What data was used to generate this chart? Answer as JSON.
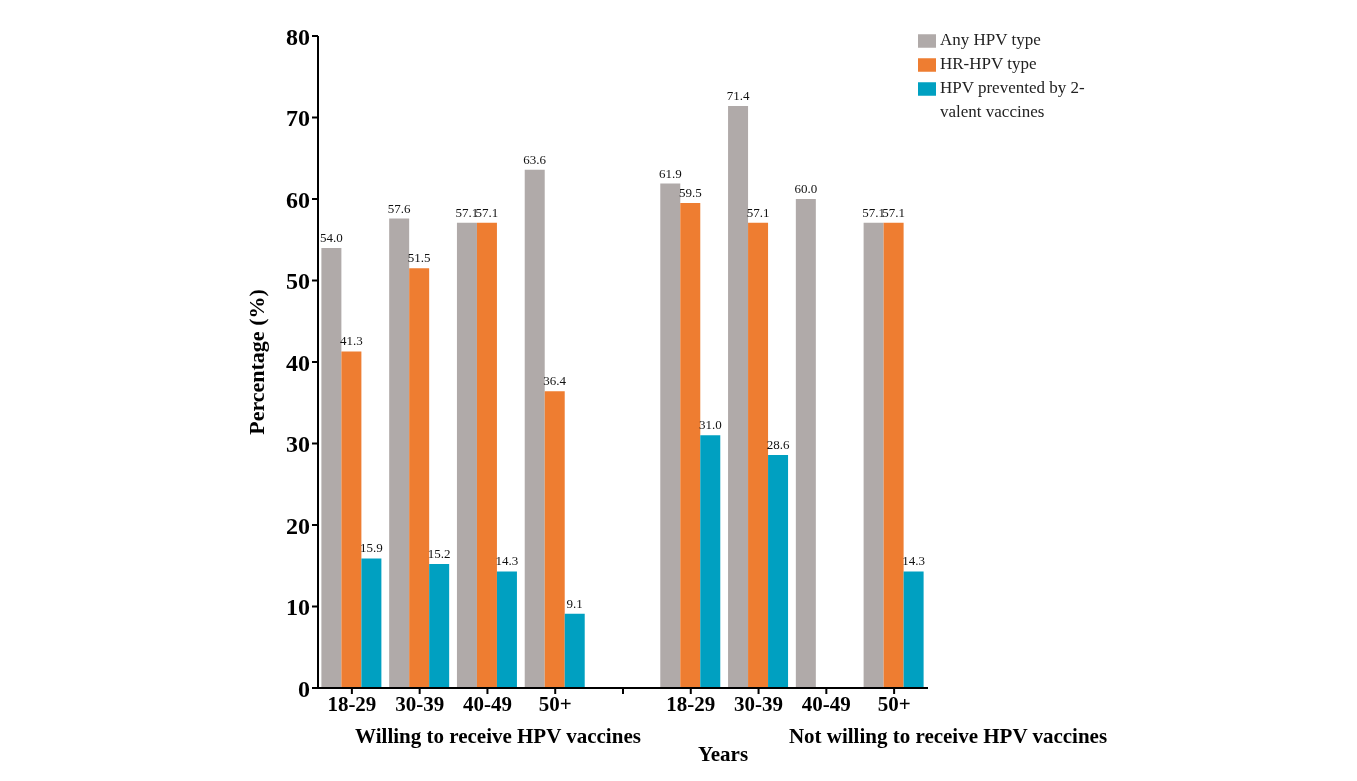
{
  "chart_data": {
    "type": "bar",
    "ylabel": "Percentage (%)",
    "xlabel": "Years",
    "categories": [
      "18-29",
      "30-39",
      "40-49",
      "50+",
      null,
      "18-29",
      "30-39",
      "40-49",
      "50+"
    ],
    "series": [
      {
        "name": "Any HPV type",
        "color": "#b0aaa9",
        "values": [
          54.0,
          57.6,
          57.1,
          63.6,
          null,
          61.9,
          71.4,
          60.0,
          57.1
        ],
        "value_labels": [
          "54.0",
          "57.6",
          "57.1",
          "63.6",
          null,
          "61.9",
          "71.4",
          "60.0",
          "57.1"
        ]
      },
      {
        "name": "HR-HPV type",
        "color": "#ee7d31",
        "values": [
          41.3,
          51.5,
          57.1,
          36.4,
          null,
          59.5,
          57.1,
          null,
          57.1
        ],
        "value_labels": [
          "41.3",
          "51.5",
          "57.1",
          "36.4",
          null,
          "59.5",
          "57.1",
          null,
          "57.1"
        ]
      },
      {
        "name": "HPV prevented by 2-valent vaccines",
        "color": "#00a0c1",
        "values": [
          15.9,
          15.2,
          14.3,
          9.1,
          null,
          31.0,
          28.6,
          null,
          14.3
        ],
        "value_labels": [
          "15.9",
          "15.2",
          "14.3",
          "9.1",
          null,
          "31.0",
          "28.6",
          null,
          "14.3"
        ]
      }
    ],
    "annotations": [
      "Willing to receive HPV vaccines",
      "Not willing to receive HPV vaccines"
    ],
    "ylim": [
      0,
      80
    ],
    "yticks": [
      0,
      10,
      20,
      30,
      40,
      50,
      60,
      70,
      80
    ],
    "grid": false,
    "legend": "top right"
  }
}
